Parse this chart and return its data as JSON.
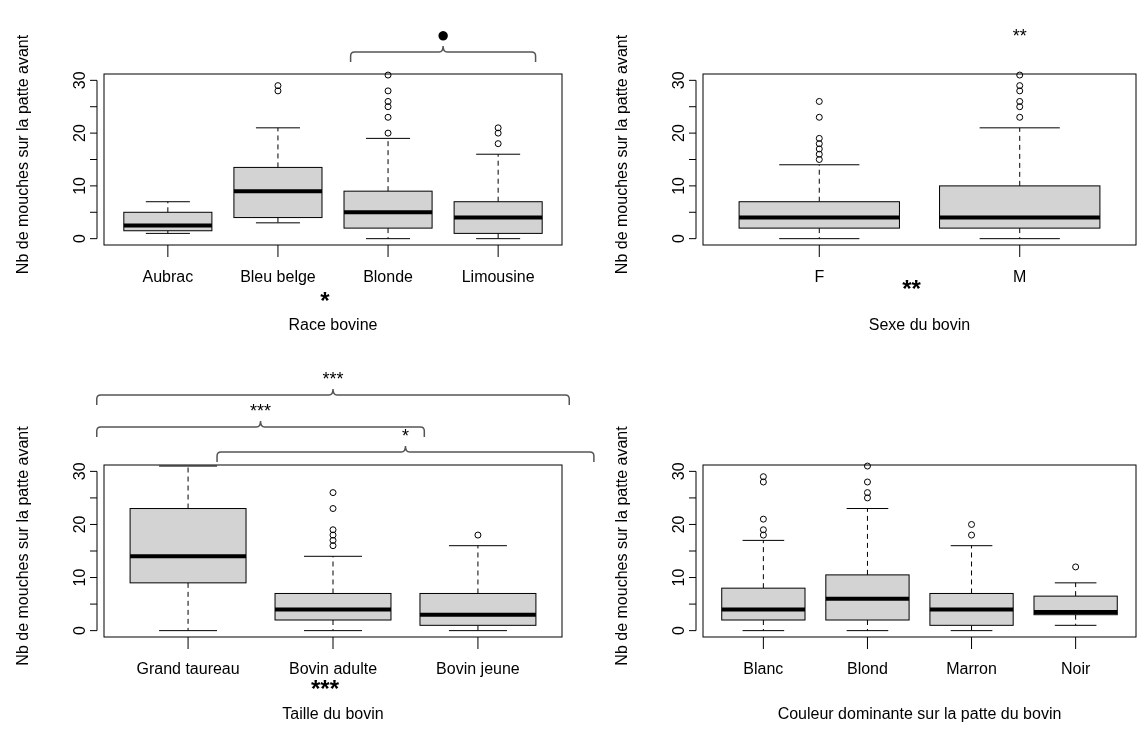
{
  "chart_data": [
    {
      "type": "box",
      "xlabel": "Race bovine",
      "ylabel": "Nb de mouches sur la patte avant",
      "categories": [
        "Aubrac",
        "Bleu belge",
        "Blonde",
        "Limousine"
      ],
      "ylim": [
        -1.2,
        31.2
      ],
      "yticks": [
        0,
        {
          "value": 5,
          "label": null
        },
        10,
        {
          "value": 15,
          "label": null
        },
        20,
        {
          "value": 25,
          "label": null
        },
        30
      ],
      "annotations": [
        "●",
        "*"
      ],
      "series": [
        {
          "color": "#d3d3d3",
          "boxes": [
            {
              "low": 1,
              "q1": 1.5,
              "median": 2.5,
              "q3": 5,
              "high": 7
            },
            {
              "low": 3,
              "q1": 4,
              "median": 9,
              "q3": 13.5,
              "high": 21,
              "outliers": [
                28,
                29
              ]
            },
            {
              "low": 0,
              "q1": 2,
              "median": 5,
              "q3": 9,
              "high": 19,
              "outliers": [
                20,
                23,
                25,
                26,
                28,
                31
              ]
            },
            {
              "low": 0,
              "q1": 1,
              "median": 4,
              "q3": 7,
              "high": 16,
              "outliers": [
                18,
                20,
                21
              ]
            }
          ]
        }
      ]
    },
    {
      "type": "box",
      "xlabel": "Sexe du bovin",
      "ylabel": "Nb de mouches sur la patte avant",
      "categories": [
        "F",
        "M"
      ],
      "ylim": [
        -1.2,
        31.2
      ],
      "yticks": [
        0,
        {
          "value": 5,
          "label": null
        },
        10,
        {
          "value": 15,
          "label": null
        },
        20,
        {
          "value": 25,
          "label": null
        },
        30
      ],
      "annotations": [
        "**",
        "**"
      ],
      "series": [
        {
          "color": "#d3d3d3",
          "boxes": [
            {
              "low": 0,
              "q1": 2,
              "median": 4,
              "q3": 7,
              "high": 14,
              "outliers": [
                15,
                16,
                17,
                18,
                19,
                23,
                26
              ]
            },
            {
              "low": 0,
              "q1": 2,
              "median": 4,
              "q3": 10,
              "high": 21,
              "outliers": [
                23,
                25,
                26,
                28,
                29,
                31
              ]
            }
          ]
        }
      ]
    },
    {
      "type": "box",
      "xlabel": "Taille du bovin",
      "ylabel": "Nb de mouches sur la patte avant",
      "categories": [
        "Grand taureau",
        "Bovin adulte",
        "Bovin jeune"
      ],
      "ylim": [
        -1.2,
        31.2
      ],
      "yticks": [
        0,
        {
          "value": 5,
          "label": null
        },
        10,
        {
          "value": 15,
          "label": null
        },
        20,
        {
          "value": 25,
          "label": null
        },
        30
      ],
      "annotations": [
        "***",
        "***",
        "*",
        "***"
      ],
      "series": [
        {
          "color": "#d3d3d3",
          "boxes": [
            {
              "low": 0,
              "q1": 9,
              "median": 14,
              "q3": 23,
              "high": 31
            },
            {
              "low": 0,
              "q1": 2,
              "median": 4,
              "q3": 7,
              "high": 14,
              "outliers": [
                16,
                17,
                18,
                19,
                23,
                26
              ]
            },
            {
              "low": 0,
              "q1": 1,
              "median": 3,
              "q3": 7,
              "high": 16,
              "outliers": [
                18
              ]
            }
          ]
        }
      ]
    },
    {
      "type": "box",
      "xlabel": "Couleur dominante sur la patte du bovin",
      "ylabel": "Nb de mouches sur la patte avant",
      "categories": [
        "Blanc",
        "Blond",
        "Marron",
        "Noir"
      ],
      "ylim": [
        -1.2,
        31.2
      ],
      "yticks": [
        0,
        {
          "value": 5,
          "label": null
        },
        10,
        {
          "value": 15,
          "label": null
        },
        20,
        {
          "value": 25,
          "label": null
        },
        30
      ],
      "series": [
        {
          "color": "#d3d3d3",
          "boxes": [
            {
              "low": 0,
              "q1": 2,
              "median": 4,
              "q3": 8,
              "high": 17,
              "outliers": [
                18,
                19,
                21,
                28,
                29
              ]
            },
            {
              "low": 0,
              "q1": 2,
              "median": 6,
              "q3": 10.5,
              "high": 23,
              "outliers": [
                25,
                26,
                28,
                31
              ]
            },
            {
              "low": 0,
              "q1": 1,
              "median": 4,
              "q3": 7,
              "high": 16,
              "outliers": [
                18,
                20
              ]
            },
            {
              "low": 1,
              "q1": 3,
              "median": 3.5,
              "q3": 6.5,
              "high": 9,
              "outliers": [
                12
              ]
            }
          ]
        }
      ]
    }
  ]
}
